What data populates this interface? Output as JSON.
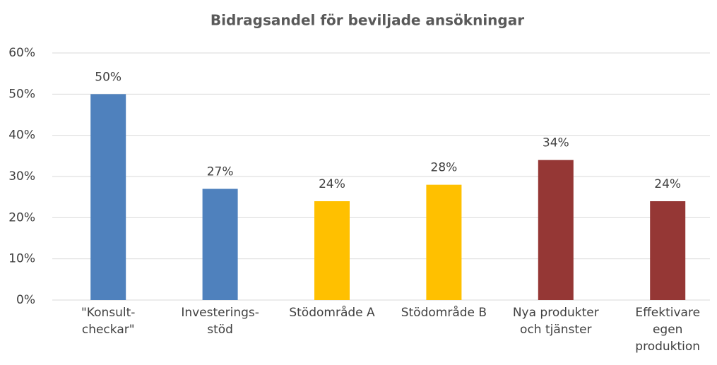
{
  "chart_data": {
    "type": "bar",
    "title": "Bidragsandel för beviljade ansökningar",
    "categories": [
      [
        "\"Konsult-",
        "checkar\""
      ],
      [
        "Investerings-",
        "stöd"
      ],
      [
        "Stödområde A"
      ],
      [
        "Stödområde B"
      ],
      [
        "Nya produkter",
        "och tjänster"
      ],
      [
        "Effektivare",
        "egen",
        "produktion"
      ]
    ],
    "values": [
      50,
      27,
      24,
      28,
      34,
      24
    ],
    "value_labels": [
      "50%",
      "27%",
      "24%",
      "28%",
      "34%",
      "24%"
    ],
    "colors": [
      "#4f81bd",
      "#4f81bd",
      "#ffc000",
      "#ffc000",
      "#953735",
      "#953735"
    ],
    "ylim": [
      0,
      60
    ],
    "yticks": [
      {
        "value": 0,
        "label": "0%"
      },
      {
        "value": 10,
        "label": "10%"
      },
      {
        "value": 20,
        "label": "20%"
      },
      {
        "value": 30,
        "label": "30%"
      },
      {
        "value": 40,
        "label": "40%"
      },
      {
        "value": 50,
        "label": "50%"
      },
      {
        "value": 60,
        "label": "60%"
      }
    ],
    "grid": true
  }
}
